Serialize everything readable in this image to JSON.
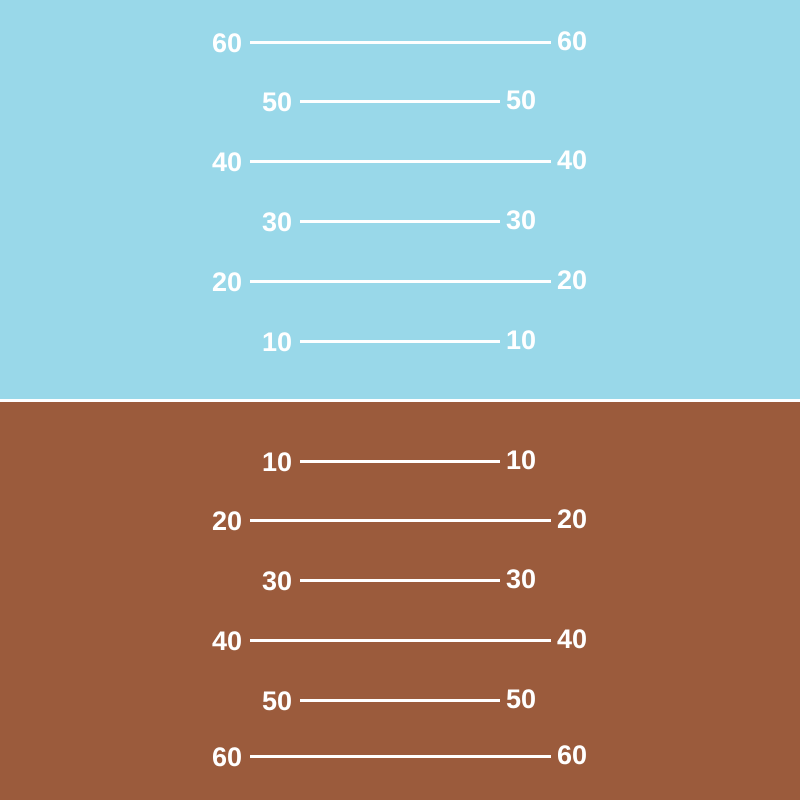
{
  "colors": {
    "sky": "#99d8e9",
    "ground": "#9b5b3c",
    "horizon": "#ffffff",
    "marks": "#ffffff"
  },
  "pitch_ladder": {
    "above_horizon": [
      {
        "value": "60",
        "size": "long"
      },
      {
        "value": "50",
        "size": "short"
      },
      {
        "value": "40",
        "size": "long"
      },
      {
        "value": "30",
        "size": "short"
      },
      {
        "value": "20",
        "size": "long"
      },
      {
        "value": "10",
        "size": "short"
      }
    ],
    "below_horizon": [
      {
        "value": "10",
        "size": "short"
      },
      {
        "value": "20",
        "size": "long"
      },
      {
        "value": "30",
        "size": "short"
      },
      {
        "value": "40",
        "size": "long"
      },
      {
        "value": "50",
        "size": "short"
      },
      {
        "value": "60",
        "size": "long"
      }
    ]
  }
}
